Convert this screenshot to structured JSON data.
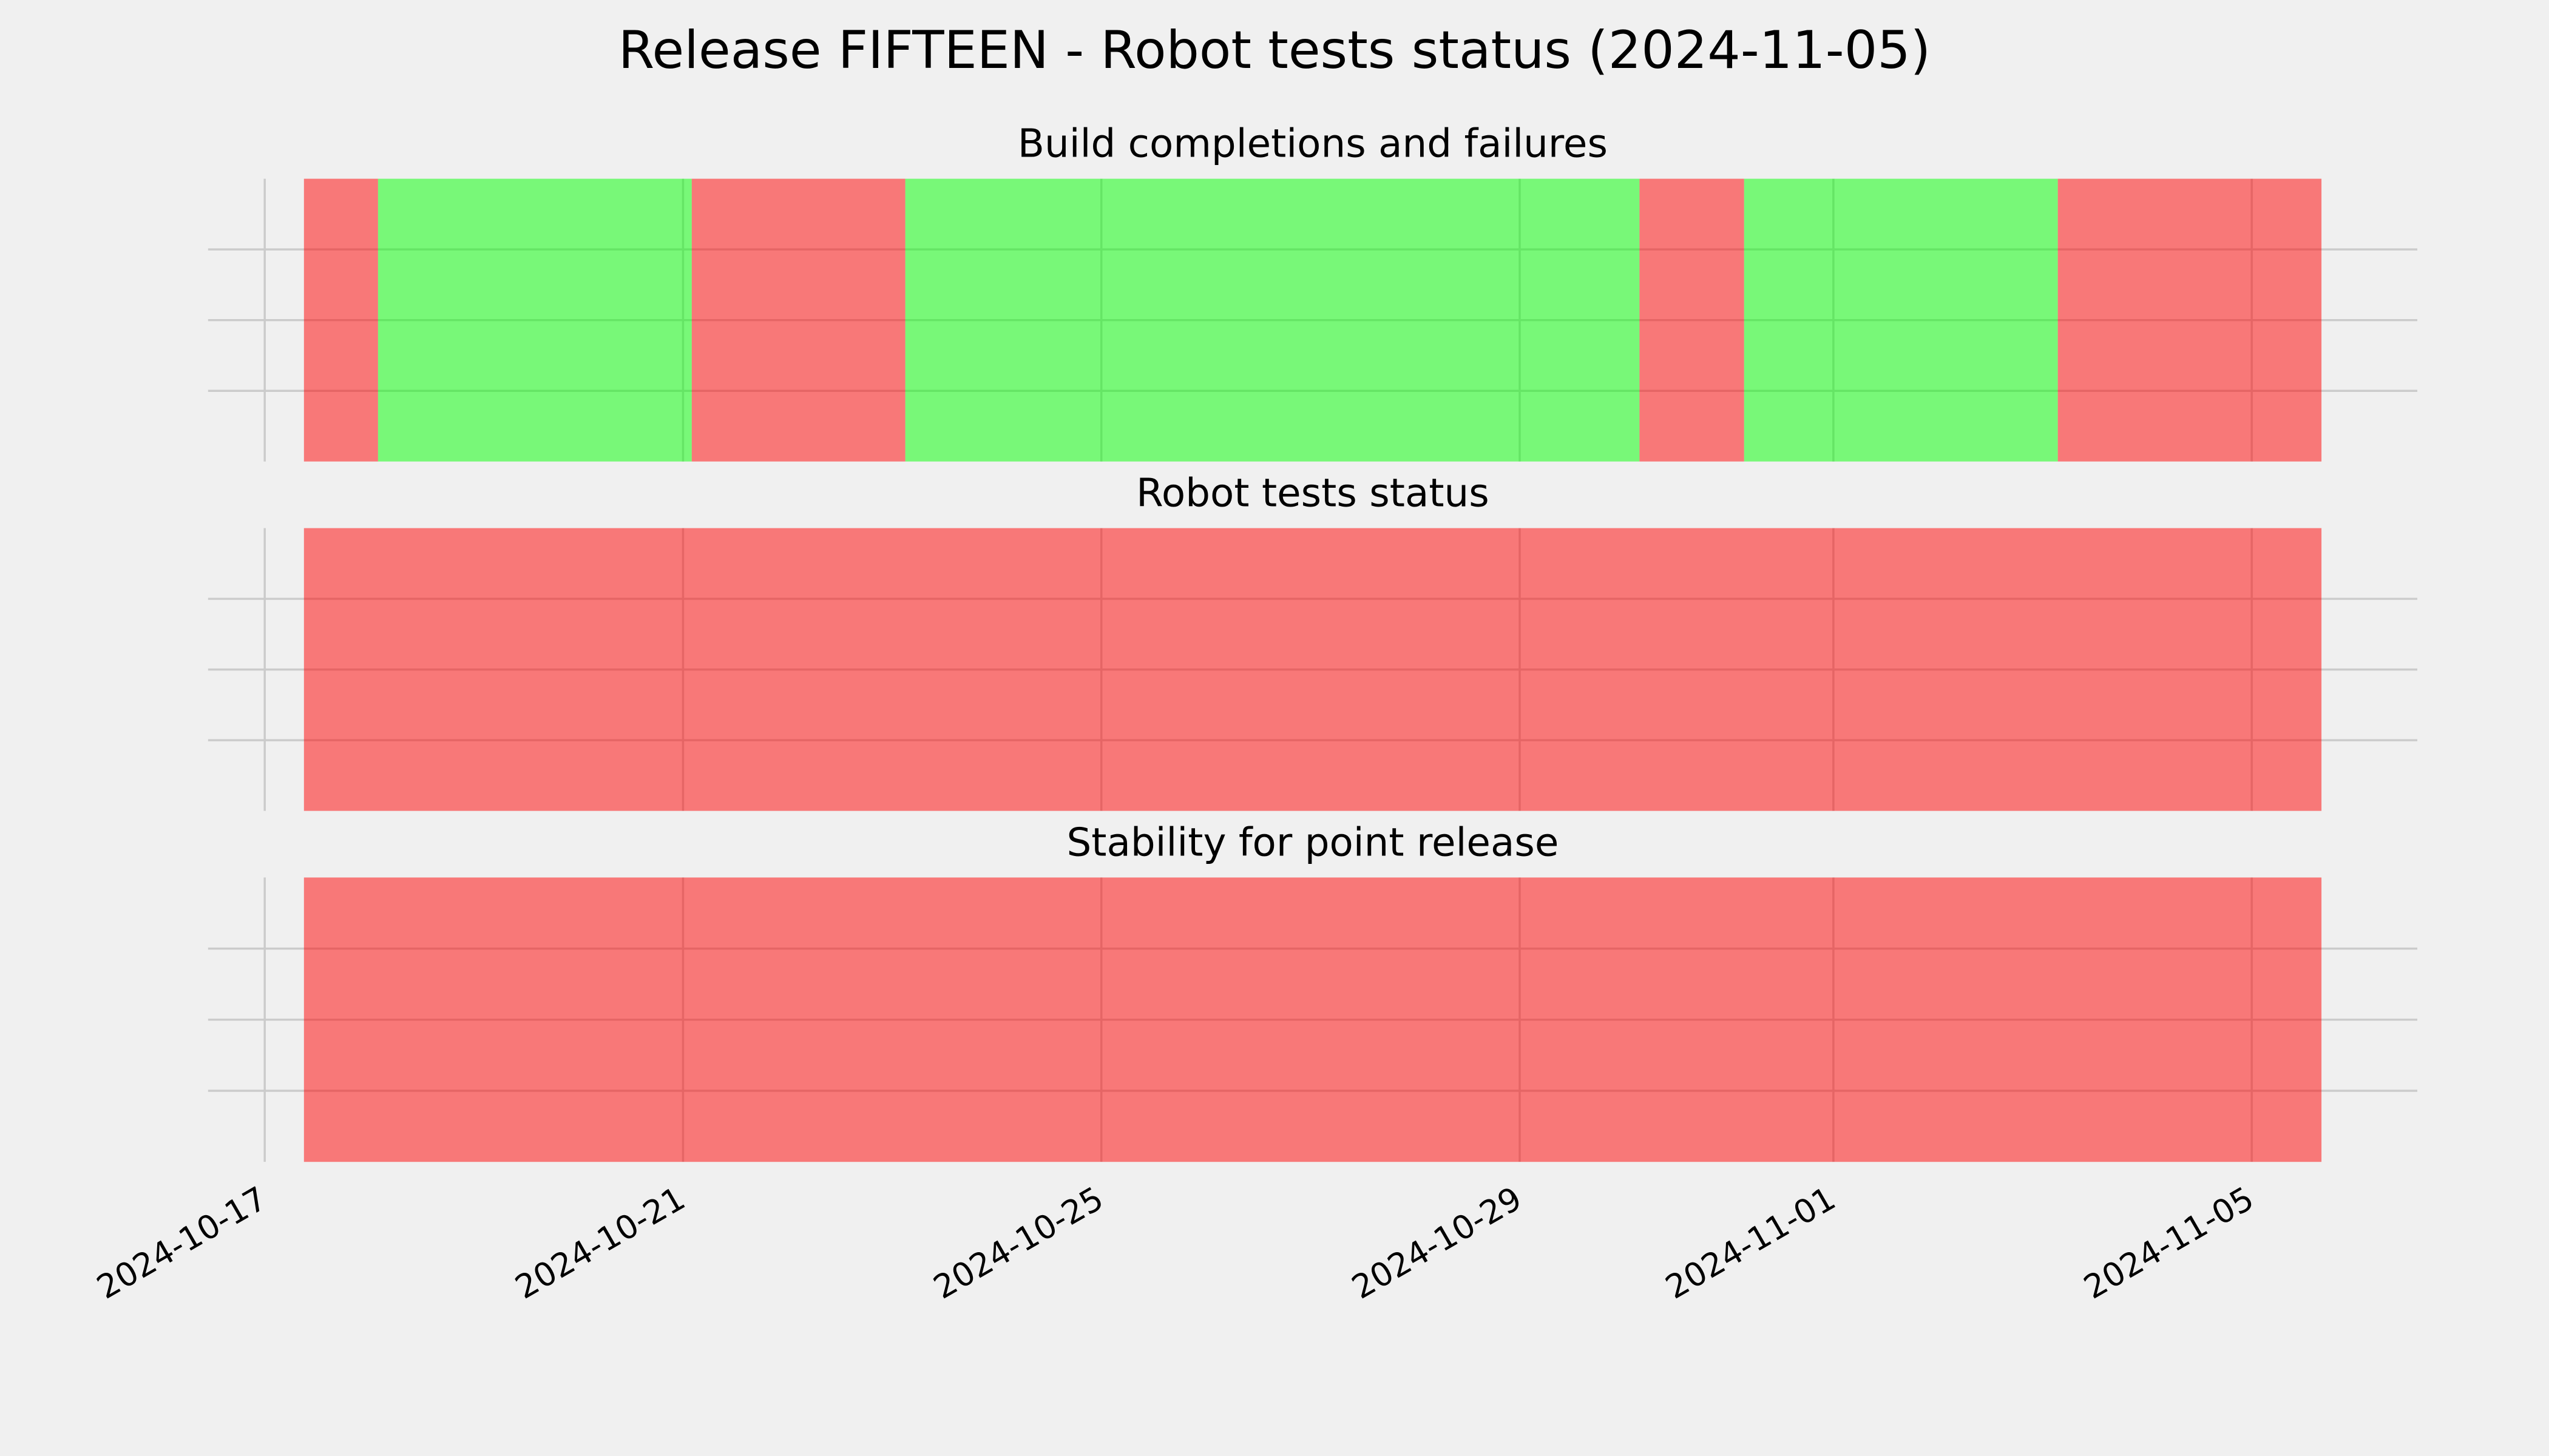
{
  "title": "Release FIFTEEN - Robot tests status (2024-11-05)",
  "chart_data": [
    {
      "type": "span",
      "title": "Build completions and failures",
      "spans": [
        {
          "start": "2024-10-17 09:00",
          "end": "2024-10-18 02:00",
          "color": "#ff0000"
        },
        {
          "start": "2024-10-18 02:00",
          "end": "2024-10-21 02:00",
          "color": "#00ff00"
        },
        {
          "start": "2024-10-21 02:00",
          "end": "2024-10-23 03:00",
          "color": "#ff0000"
        },
        {
          "start": "2024-10-23 03:00",
          "end": "2024-10-30 03:30",
          "color": "#00ff00"
        },
        {
          "start": "2024-10-30 03:30",
          "end": "2024-10-31 03:30",
          "color": "#ff0000"
        },
        {
          "start": "2024-10-31 03:30",
          "end": "2024-11-03 03:30",
          "color": "#00ff00"
        },
        {
          "start": "2024-11-03 03:30",
          "end": "2024-11-05 16:00",
          "color": "#ff0000"
        }
      ],
      "alpha": 0.5,
      "xlim": [
        "2024-10-16 11:00",
        "2024-11-06 14:00"
      ],
      "xticks": [
        "2024-10-17",
        "2024-10-21",
        "2024-10-25",
        "2024-10-29",
        "2024-11-01",
        "2024-11-05"
      ],
      "ylim": [
        0,
        1
      ],
      "yticks": [
        0.25,
        0.5,
        0.75
      ],
      "grid": true
    },
    {
      "type": "span",
      "title": "Robot tests status",
      "spans": [
        {
          "start": "2024-10-17 09:00",
          "end": "2024-11-05 16:00",
          "color": "#ff0000"
        }
      ],
      "alpha": 0.5,
      "xlim": [
        "2024-10-16 11:00",
        "2024-11-06 14:00"
      ],
      "xticks": [
        "2024-10-17",
        "2024-10-21",
        "2024-10-25",
        "2024-10-29",
        "2024-11-01",
        "2024-11-05"
      ],
      "ylim": [
        0,
        1
      ],
      "yticks": [
        0.25,
        0.5,
        0.75
      ],
      "grid": true
    },
    {
      "type": "span",
      "title": "Stability for point release",
      "spans": [
        {
          "start": "2024-10-17 09:00",
          "end": "2024-11-05 16:00",
          "color": "#ff0000"
        }
      ],
      "alpha": 0.5,
      "xlim": [
        "2024-10-16 11:00",
        "2024-11-06 14:00"
      ],
      "xticks": [
        "2024-10-17",
        "2024-10-21",
        "2024-10-25",
        "2024-10-29",
        "2024-11-01",
        "2024-11-05"
      ],
      "ylim": [
        0,
        1
      ],
      "yticks": [
        0.25,
        0.5,
        0.75
      ],
      "grid": true
    }
  ]
}
